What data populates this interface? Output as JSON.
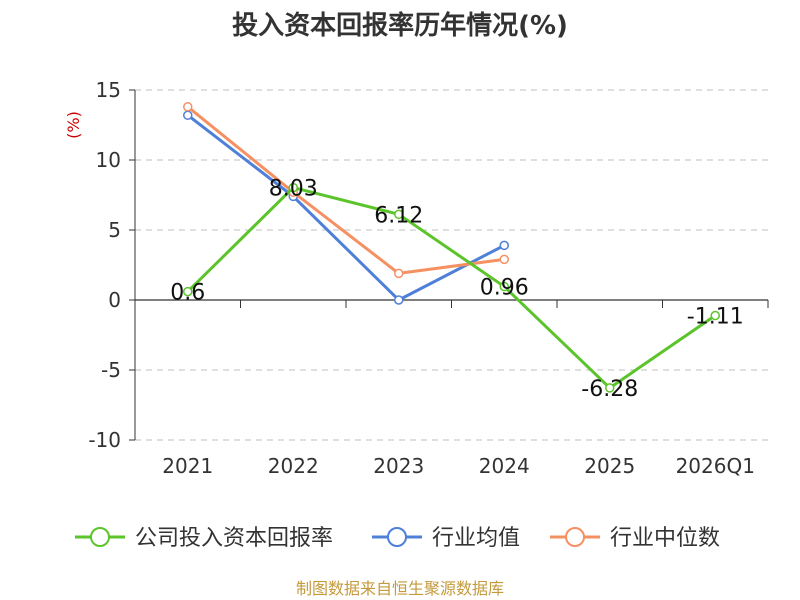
{
  "chart_data": {
    "type": "line",
    "title": "投入资本回报率历年情况(%)",
    "ylabel": "(%)",
    "ylim": [
      -10,
      15
    ],
    "yticks": [
      15,
      10,
      5,
      0,
      -5,
      -10
    ],
    "grid": true,
    "legend_position": "bottom",
    "categories": [
      "2021",
      "2022",
      "2023",
      "2024",
      "2025",
      "2026Q1"
    ],
    "series": [
      {
        "name": "公司投入资本回报率",
        "color": "#5bc42a",
        "values": [
          0.6,
          8.03,
          6.12,
          0.96,
          -6.28,
          -1.11
        ],
        "labels": [
          "0.6",
          "8.03",
          "6.12",
          "0.96",
          "-6.28",
          "-1.11"
        ]
      },
      {
        "name": "行业均值",
        "color": "#4e7fd9",
        "values": [
          13.2,
          7.4,
          0.0,
          3.9,
          null,
          null
        ]
      },
      {
        "name": "行业中位数",
        "color": "#f59062",
        "values": [
          13.8,
          7.7,
          1.9,
          2.9,
          null,
          null
        ]
      }
    ],
    "source": "制图数据来自恒生聚源数据库",
    "ylabel_color": "#cc0000",
    "source_color": "#c49a3c",
    "axis_color": "#333333",
    "grid_color": "#cccccc"
  }
}
